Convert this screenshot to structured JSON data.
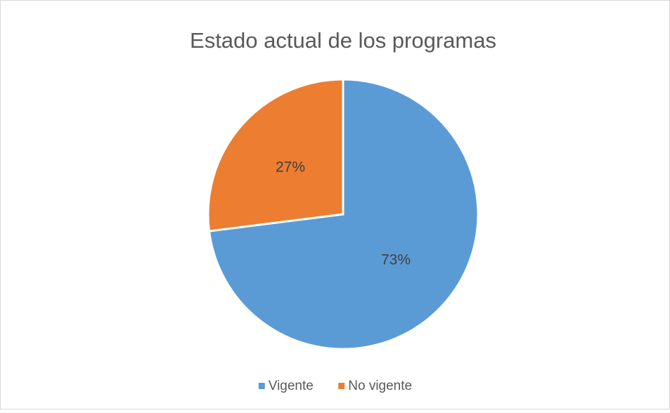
{
  "chart_data": {
    "type": "pie",
    "title": "Estado actual de los programas",
    "categories": [
      "Vigente",
      "No vigente"
    ],
    "values": [
      73,
      27
    ],
    "value_labels": [
      "73%",
      "27%"
    ],
    "colors": [
      "#5b9bd5",
      "#ed7d31"
    ],
    "legend": "bottom"
  }
}
